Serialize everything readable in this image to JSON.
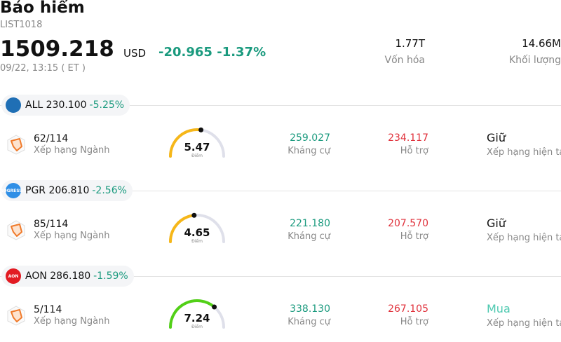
{
  "header": {
    "title": "Bảo hiểm",
    "code": "LIST1018",
    "price": "1509.218",
    "currency": "USD",
    "change": "-20.965",
    "change_pct": "-1.37%",
    "time": "09/22, 13:15  ( ET )"
  },
  "stats": [
    {
      "value": "1.77T",
      "label": "Vốn hóa"
    },
    {
      "value": "14.66M",
      "label": "Khối lượng"
    }
  ],
  "colors": {
    "accent_green": "#1a9a7e",
    "red": "#e0323c",
    "buy": "#4ec9b0"
  },
  "stocks": [
    {
      "ticker_price": "ALL 230.100",
      "change": "-5.25%",
      "logo_color": "#1f6fb5",
      "logo_text": "",
      "rank": "62/114",
      "rank_label": "Xếp hạng Ngành",
      "score": "5.47",
      "score_label": "Điểm",
      "score_fraction": 0.547,
      "gauge_color": "#f6b719",
      "resistance": "259.027",
      "resistance_label": "Kháng cự",
      "support": "234.117",
      "support_label": "Hỗ trợ",
      "rating": "Giữ",
      "rating_label": "Xếp hạng hiện tại",
      "rating_color": "#111111"
    },
    {
      "ticker_price": "PGR 206.810",
      "change": "-2.56%",
      "logo_color": "#2f8fe6",
      "logo_text": "PROGRESSIVE",
      "rank": "85/114",
      "rank_label": "Xếp hạng Ngành",
      "score": "4.65",
      "score_label": "Điểm",
      "score_fraction": 0.465,
      "gauge_color": "#f6b719",
      "resistance": "221.180",
      "resistance_label": "Kháng cự",
      "support": "207.570",
      "support_label": "Hỗ trợ",
      "rating": "Giữ",
      "rating_label": "Xếp hạng hiện tại",
      "rating_color": "#111111"
    },
    {
      "ticker_price": "AON 286.180",
      "change": "-1.59%",
      "logo_color": "#e21b22",
      "logo_text": "AON",
      "rank": "5/114",
      "rank_label": "Xếp hạng Ngành",
      "score": "7.24",
      "score_label": "Điểm",
      "score_fraction": 0.724,
      "gauge_color": "#52d017",
      "resistance": "338.130",
      "resistance_label": "Kháng cự",
      "support": "267.105",
      "support_label": "Hỗ trợ",
      "rating": "Mua",
      "rating_label": "Xếp hạng hiện tại",
      "rating_color": "#4ec9b0"
    }
  ]
}
